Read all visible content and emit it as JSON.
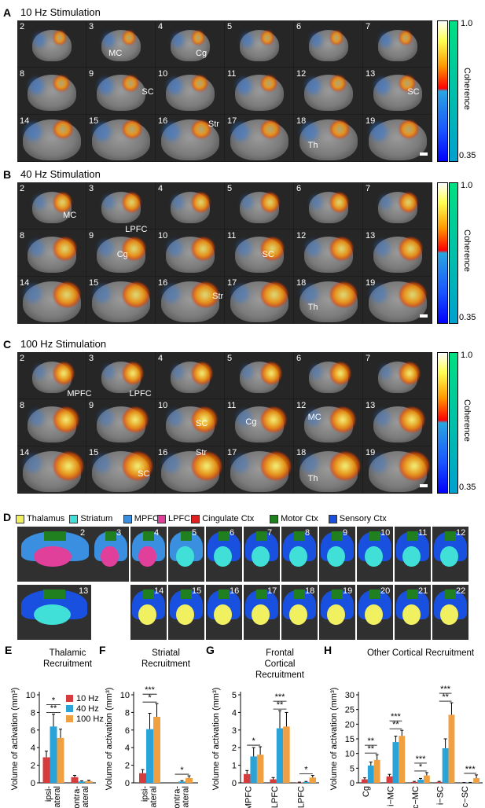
{
  "panelA": {
    "letter": "A",
    "title": "10 Hz Stimulation",
    "slices": [
      "2",
      "3",
      "4",
      "5",
      "6",
      "7",
      "8",
      "9",
      "10",
      "11",
      "12",
      "13",
      "14",
      "15",
      "16",
      "17",
      "18",
      "19"
    ],
    "annotations": [
      "MC",
      "Cg",
      "SC",
      "SC",
      "Str",
      "Th"
    ]
  },
  "panelB": {
    "letter": "B",
    "title": "40 Hz Stimulation",
    "slices": [
      "2",
      "3",
      "4",
      "5",
      "6",
      "7",
      "8",
      "9",
      "10",
      "11",
      "12",
      "13",
      "14",
      "15",
      "16",
      "17",
      "18",
      "19"
    ],
    "annotations": [
      "MC",
      "LPFC",
      "Cg",
      "SC",
      "Str",
      "Th"
    ]
  },
  "panelC": {
    "letter": "C",
    "title": "100 Hz Stimulation",
    "slices": [
      "2",
      "3",
      "4",
      "5",
      "6",
      "7",
      "8",
      "9",
      "10",
      "11",
      "12",
      "13",
      "14",
      "15",
      "16",
      "17",
      "18",
      "19"
    ],
    "annotations": [
      "MPFC",
      "LPFC",
      "MC",
      "SC",
      "Cg",
      "Str",
      "SC",
      "Th"
    ]
  },
  "colorbar": {
    "max": "1.0",
    "min": "0.35",
    "title": "Coherence"
  },
  "panelD": {
    "letter": "D",
    "legend": [
      {
        "label": "Thalamus",
        "color": "#f0f060"
      },
      {
        "label": "Striatum",
        "color": "#40e0d8"
      },
      {
        "label": "MPFC",
        "color": "#3b8fe0"
      },
      {
        "label": "LPFC",
        "color": "#e0409a"
      },
      {
        "label": "Cingulate Ctx",
        "color": "#e02020"
      },
      {
        "label": "Motor Ctx",
        "color": "#208020"
      },
      {
        "label": "Sensory Ctx",
        "color": "#1a50e0"
      }
    ],
    "slices": [
      "2",
      "3",
      "4",
      "5",
      "6",
      "7",
      "8",
      "9",
      "10",
      "11",
      "12",
      "13",
      "14",
      "15",
      "16",
      "17",
      "18",
      "19",
      "20",
      "21",
      "22"
    ]
  },
  "series_colors": {
    "10 Hz": "#d63c3c",
    "40 Hz": "#2aa3d8",
    "100 Hz": "#f0a040"
  },
  "chart_data": [
    {
      "panel": "E",
      "type": "bar",
      "title": "Thalamic Recruitment",
      "ylabel": "Volume of activation (mm³)",
      "categories": [
        "ipsi-lateral",
        "contra-lateral"
      ],
      "category_lines": [
        [
          "ipsi-",
          "lateral"
        ],
        [
          "contra-",
          "lateral"
        ]
      ],
      "ylim": [
        0,
        10
      ],
      "yticks": [
        "0",
        "2",
        "4",
        "6",
        "8",
        "10"
      ],
      "series": [
        {
          "name": "10 Hz",
          "values": [
            2.9,
            0.65
          ],
          "err": [
            0.7,
            0.2
          ]
        },
        {
          "name": "40 Hz",
          "values": [
            6.4,
            0.15
          ],
          "err": [
            1.4,
            0.08
          ]
        },
        {
          "name": "100 Hz",
          "values": [
            5.1,
            0.2
          ],
          "err": [
            1.0,
            0.1
          ]
        }
      ],
      "sig": [
        "**",
        "*"
      ]
    },
    {
      "panel": "F",
      "type": "bar",
      "title": "Striatal Recruitment",
      "ylabel": "Volume of activation (mm³)",
      "categories": [
        "ipsi-lateral",
        "contra-lateral"
      ],
      "category_lines": [
        [
          "ipsi-",
          "lateral"
        ],
        [
          "contra-",
          "lateral"
        ]
      ],
      "ylim": [
        0,
        10
      ],
      "yticks": [
        "0",
        "2",
        "4",
        "6",
        "8",
        "10"
      ],
      "series": [
        {
          "name": "10 Hz",
          "values": [
            1.1,
            0.0
          ],
          "err": [
            0.4,
            0.0
          ]
        },
        {
          "name": "40 Hz",
          "values": [
            6.1,
            0.15
          ],
          "err": [
            1.8,
            0.1
          ]
        },
        {
          "name": "100 Hz",
          "values": [
            7.5,
            0.55
          ],
          "err": [
            1.5,
            0.25
          ]
        }
      ],
      "sig": [
        "*",
        "***",
        "*"
      ]
    },
    {
      "panel": "G",
      "type": "bar",
      "title": "Frontal Cortical Recruitment",
      "ylabel": "Volume of activation (mm³)",
      "categories": [
        "MPFC",
        "i−LPFC",
        "c−LPFC"
      ],
      "ylim": [
        0,
        5
      ],
      "yticks": [
        "0",
        "1",
        "2",
        "3",
        "4",
        "5"
      ],
      "series": [
        {
          "name": "10 Hz",
          "values": [
            0.5,
            0.2,
            0.02
          ],
          "err": [
            0.2,
            0.1,
            0.02
          ]
        },
        {
          "name": "40 Hz",
          "values": [
            1.5,
            3.1,
            0.05
          ],
          "err": [
            0.5,
            1.0,
            0.03
          ]
        },
        {
          "name": "100 Hz",
          "values": [
            1.6,
            3.2,
            0.3
          ],
          "err": [
            0.45,
            0.8,
            0.12
          ]
        }
      ],
      "sig": [
        "*",
        "**",
        "***",
        "*"
      ]
    },
    {
      "panel": "H",
      "type": "bar",
      "title": "Other Cortical Recruitment",
      "ylabel": "Volume of activation (mm³)",
      "categories": [
        "Cg",
        "i−MC",
        "c−MC",
        "i−SC",
        "c−SC"
      ],
      "ylim": [
        0,
        30
      ],
      "yticks": [
        "0",
        "5",
        "10",
        "15",
        "20",
        "25",
        "30"
      ],
      "series": [
        {
          "name": "10 Hz",
          "values": [
            1.2,
            2.2,
            0.3,
            0.3,
            0.05
          ],
          "err": [
            0.5,
            0.7,
            0.2,
            0.2,
            0.05
          ]
        },
        {
          "name": "40 Hz",
          "values": [
            5.9,
            13.9,
            1.1,
            11.8,
            0.1
          ],
          "err": [
            1.2,
            2.0,
            0.4,
            3.2,
            0.05
          ]
        },
        {
          "name": "100 Hz",
          "values": [
            7.8,
            16.0,
            2.5,
            23.2,
            1.6
          ],
          "err": [
            1.8,
            1.9,
            1.0,
            4.1,
            1.1
          ]
        }
      ],
      "sig": [
        "**",
        "**",
        "**",
        "***",
        "*",
        "***",
        "**",
        "***",
        "***"
      ]
    }
  ]
}
